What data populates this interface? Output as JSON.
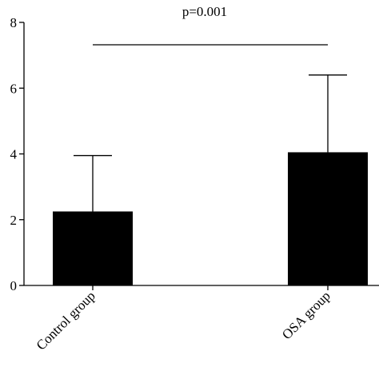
{
  "chart_data": {
    "type": "bar",
    "categories": [
      "Control group",
      "OSA group"
    ],
    "values": [
      2.25,
      4.05
    ],
    "error_upper": [
      3.95,
      6.4
    ],
    "ylim": [
      0,
      8
    ],
    "yticks": [
      0,
      2,
      4,
      6,
      8
    ],
    "ytick_labels": [
      "0",
      "2",
      "4",
      "6",
      "8"
    ],
    "annotation": "p=0.001",
    "bar_color": "#000000",
    "grid": false,
    "title": "",
    "xlabel": "",
    "ylabel": ""
  }
}
